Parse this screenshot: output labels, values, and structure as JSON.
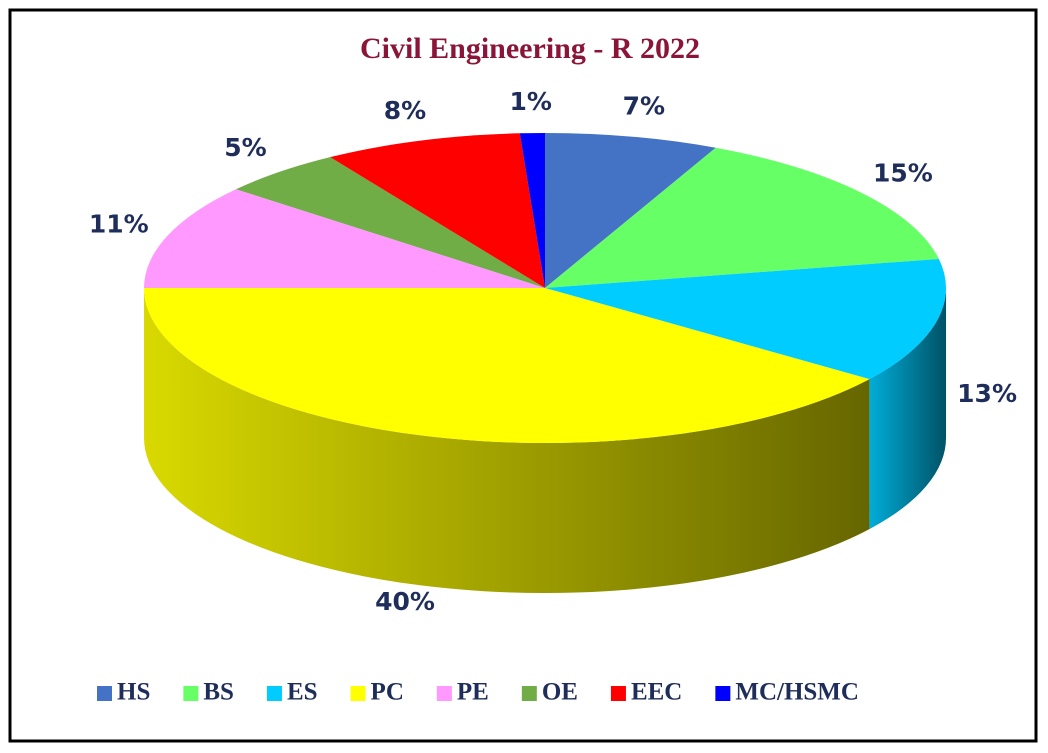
{
  "chart_data": {
    "type": "pie",
    "title": "Civil Engineering - R 2022",
    "categories": [
      "HS",
      "BS",
      "ES",
      "PC",
      "PE",
      "OE",
      "EEC",
      "MC/HSMC"
    ],
    "values": [
      7,
      15,
      13,
      40,
      11,
      5,
      8,
      1
    ],
    "value_labels": [
      "7%",
      "15%",
      "13%",
      "40%",
      "11%",
      "5%",
      "8%",
      "1%"
    ],
    "colors": [
      "#4472c4",
      "#66ff66",
      "#00ccff",
      "#ffff00",
      "#ff99ff",
      "#70ad47",
      "#ff0000",
      "#0000ff"
    ],
    "legend": "bottom"
  }
}
